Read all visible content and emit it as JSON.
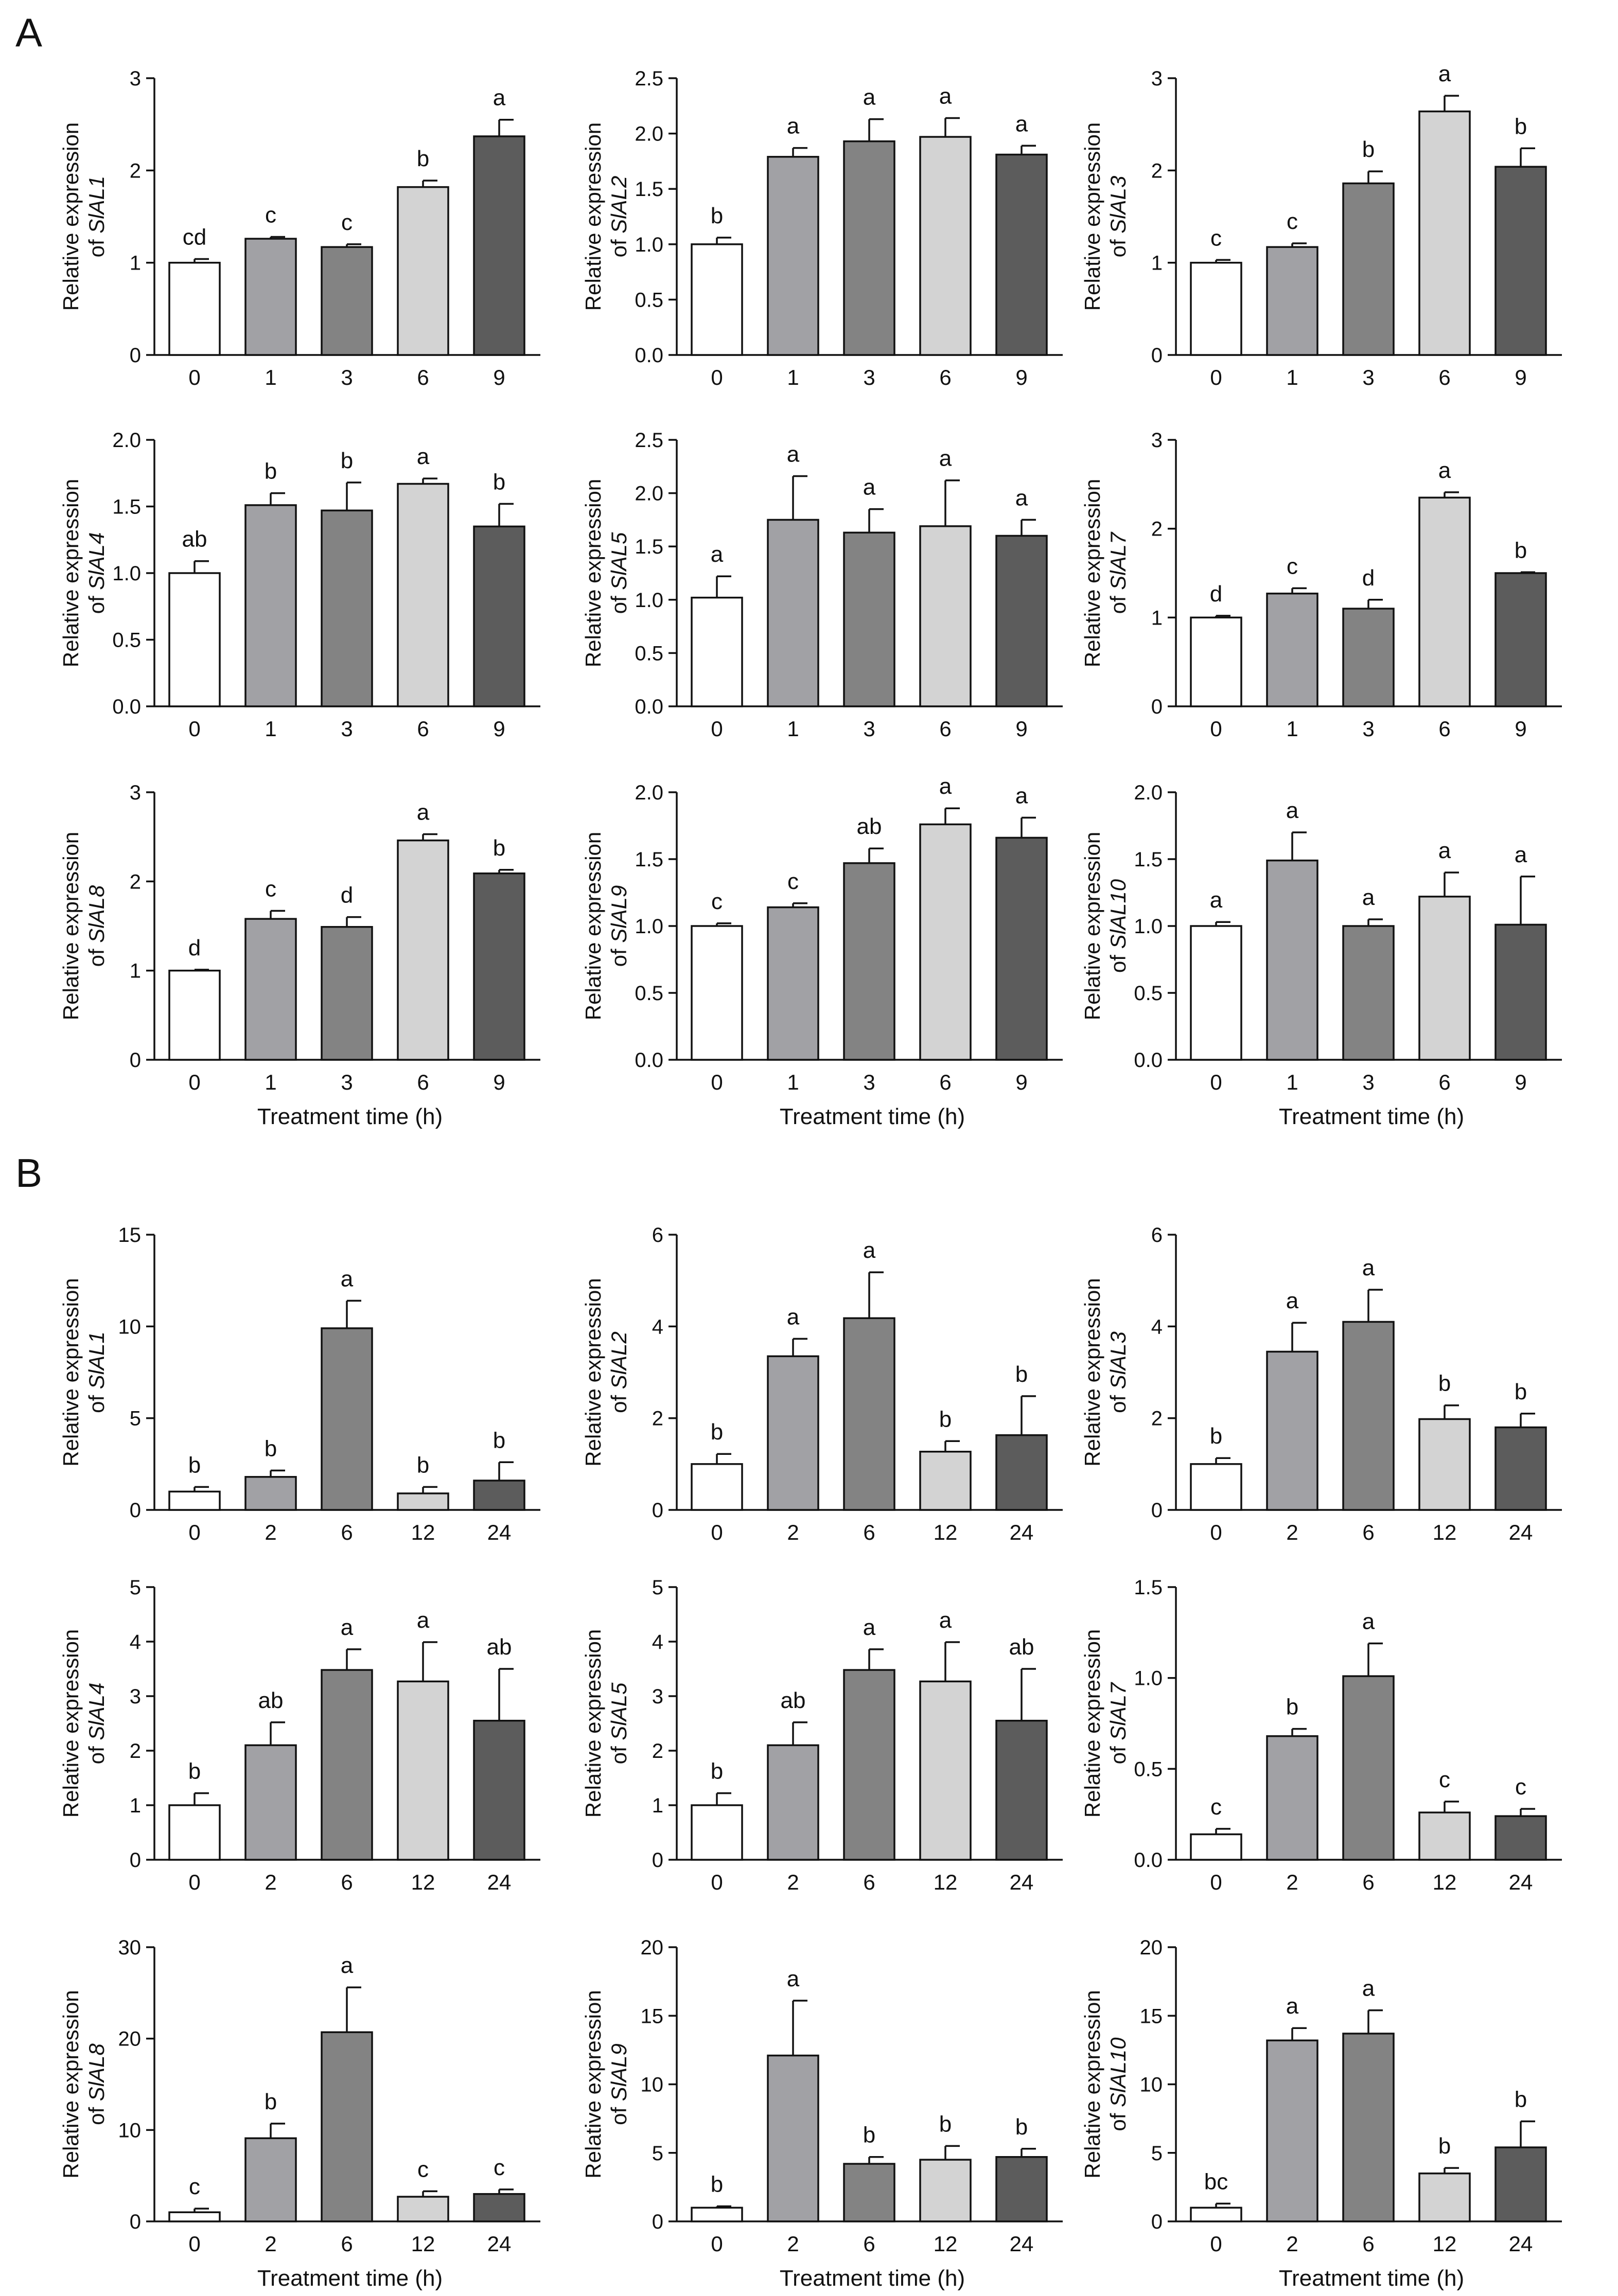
{
  "panel_labels": [
    "A",
    "B"
  ],
  "chart_data": [
    {
      "panel": "A",
      "type": "bar",
      "categories": [
        "0",
        "1",
        "3",
        "6",
        "9"
      ],
      "values": [
        1.0,
        1.26,
        1.17,
        1.82,
        2.37
      ],
      "errors": [
        0.04,
        0.02,
        0.03,
        0.07,
        0.18
      ],
      "letters": [
        "cd",
        "c",
        "c",
        "b",
        "a"
      ],
      "ylim": [
        0,
        3
      ],
      "yticks": [
        "0",
        "1",
        "2",
        "3"
      ],
      "ylabel": "Relative expression",
      "gene": "SlAL1",
      "xlabel": ""
    },
    {
      "panel": "A",
      "type": "bar",
      "categories": [
        "0",
        "1",
        "3",
        "6",
        "9"
      ],
      "values": [
        1.0,
        1.79,
        1.93,
        1.97,
        1.81
      ],
      "errors": [
        0.06,
        0.08,
        0.2,
        0.17,
        0.08
      ],
      "letters": [
        "b",
        "a",
        "a",
        "a",
        "a"
      ],
      "ylim": [
        0,
        2.5
      ],
      "yticks": [
        "0.0",
        "0.5",
        "1.0",
        "1.5",
        "2.0",
        "2.5"
      ],
      "ylabel": "Relative expression",
      "gene": "SlAL2",
      "xlabel": ""
    },
    {
      "panel": "A",
      "type": "bar",
      "categories": [
        "0",
        "1",
        "3",
        "6",
        "9"
      ],
      "values": [
        1.0,
        1.17,
        1.86,
        2.64,
        2.04
      ],
      "errors": [
        0.03,
        0.04,
        0.13,
        0.17,
        0.2
      ],
      "letters": [
        "c",
        "c",
        "b",
        "a",
        "b"
      ],
      "ylim": [
        0,
        3
      ],
      "yticks": [
        "0",
        "1",
        "2",
        "3"
      ],
      "ylabel": "Relative expression",
      "gene": "SlAL3",
      "xlabel": ""
    },
    {
      "panel": "A",
      "type": "bar",
      "categories": [
        "0",
        "1",
        "3",
        "6",
        "9"
      ],
      "values": [
        1.0,
        1.51,
        1.47,
        1.67,
        1.35
      ],
      "errors": [
        0.09,
        0.09,
        0.21,
        0.04,
        0.17
      ],
      "letters": [
        "ab",
        "b",
        "b",
        "a",
        "b"
      ],
      "ylim": [
        0,
        2
      ],
      "yticks": [
        "0.0",
        "0.5",
        "1.0",
        "1.5",
        "2.0"
      ],
      "ylabel": "Relative expression",
      "gene": "SlAL4",
      "xlabel": ""
    },
    {
      "panel": "A",
      "type": "bar",
      "categories": [
        "0",
        "1",
        "3",
        "6",
        "9"
      ],
      "values": [
        1.02,
        1.75,
        1.63,
        1.69,
        1.6
      ],
      "errors": [
        0.2,
        0.41,
        0.22,
        0.43,
        0.15
      ],
      "letters": [
        "a",
        "a",
        "a",
        "a",
        "a"
      ],
      "ylim": [
        0,
        2.5
      ],
      "yticks": [
        "0.0",
        "0.5",
        "1.0",
        "1.5",
        "2.0",
        "2.5"
      ],
      "ylabel": "Relative expression",
      "gene": "SlAL5",
      "xlabel": ""
    },
    {
      "panel": "A",
      "type": "bar",
      "categories": [
        "0",
        "1",
        "3",
        "6",
        "9"
      ],
      "values": [
        1.0,
        1.27,
        1.1,
        2.35,
        1.5
      ],
      "errors": [
        0.02,
        0.06,
        0.1,
        0.06,
        0.01
      ],
      "letters": [
        "d",
        "c",
        "d",
        "a",
        "b"
      ],
      "ylim": [
        0,
        3
      ],
      "yticks": [
        "0",
        "1",
        "2",
        "3"
      ],
      "ylabel": "Relative expression",
      "gene": "SlAL7",
      "xlabel": ""
    },
    {
      "panel": "A",
      "type": "bar",
      "categories": [
        "0",
        "1",
        "3",
        "6",
        "9"
      ],
      "values": [
        1.0,
        1.58,
        1.49,
        2.46,
        2.09
      ],
      "errors": [
        0.01,
        0.09,
        0.11,
        0.07,
        0.04
      ],
      "letters": [
        "d",
        "c",
        "d",
        "a",
        "b"
      ],
      "ylim": [
        0,
        3
      ],
      "yticks": [
        "0",
        "1",
        "2",
        "3"
      ],
      "ylabel": "Relative expression",
      "gene": "SlAL8",
      "xlabel": "Treatment time (h)"
    },
    {
      "panel": "A",
      "type": "bar",
      "categories": [
        "0",
        "1",
        "3",
        "6",
        "9"
      ],
      "values": [
        1.0,
        1.14,
        1.47,
        1.76,
        1.66
      ],
      "errors": [
        0.02,
        0.03,
        0.11,
        0.12,
        0.15
      ],
      "letters": [
        "c",
        "c",
        "ab",
        "a",
        "a"
      ],
      "ylim": [
        0,
        2
      ],
      "yticks": [
        "0.0",
        "0.5",
        "1.0",
        "1.5",
        "2.0"
      ],
      "ylabel": "Relative expression",
      "gene": "SlAL9",
      "xlabel": "Treatment time (h)"
    },
    {
      "panel": "A",
      "type": "bar",
      "categories": [
        "0",
        "1",
        "3",
        "6",
        "9"
      ],
      "values": [
        1.0,
        1.49,
        1.0,
        1.22,
        1.01
      ],
      "errors": [
        0.03,
        0.21,
        0.05,
        0.18,
        0.36
      ],
      "letters": [
        "a",
        "a",
        "a",
        "a",
        "a"
      ],
      "ylim": [
        0,
        2
      ],
      "yticks": [
        "0.0",
        "0.5",
        "1.0",
        "1.5",
        "2.0"
      ],
      "ylabel": "Relative expression",
      "gene": "SlAL10",
      "xlabel": "Treatment time (h)"
    },
    {
      "panel": "B",
      "type": "bar",
      "categories": [
        "0",
        "2",
        "6",
        "12",
        "24"
      ],
      "values": [
        1.0,
        1.8,
        9.9,
        0.9,
        1.6
      ],
      "errors": [
        0.25,
        0.35,
        1.5,
        0.35,
        1.0
      ],
      "letters": [
        "b",
        "b",
        "a",
        "b",
        "b"
      ],
      "ylim": [
        0,
        15
      ],
      "yticks": [
        "0",
        "5",
        "10",
        "15"
      ],
      "ylabel": "Relative expression",
      "gene": "SlAL1",
      "xlabel": ""
    },
    {
      "panel": "B",
      "type": "bar",
      "categories": [
        "0",
        "2",
        "6",
        "12",
        "24"
      ],
      "values": [
        1.0,
        3.35,
        4.18,
        1.27,
        1.63
      ],
      "errors": [
        0.22,
        0.38,
        1.0,
        0.23,
        0.85
      ],
      "letters": [
        "b",
        "a",
        "a",
        "b",
        "b"
      ],
      "ylim": [
        0,
        6
      ],
      "yticks": [
        "0",
        "2",
        "4",
        "6"
      ],
      "ylabel": "Relative expression",
      "gene": "SlAL2",
      "xlabel": ""
    },
    {
      "panel": "B",
      "type": "bar",
      "categories": [
        "0",
        "2",
        "6",
        "12",
        "24"
      ],
      "values": [
        1.0,
        3.45,
        4.1,
        1.98,
        1.8
      ],
      "errors": [
        0.13,
        0.63,
        0.7,
        0.3,
        0.3
      ],
      "letters": [
        "b",
        "a",
        "a",
        "b",
        "b"
      ],
      "ylim": [
        0,
        6
      ],
      "yticks": [
        "0",
        "2",
        "4",
        "6"
      ],
      "ylabel": "Relative expression",
      "gene": "SlAL3",
      "xlabel": ""
    },
    {
      "panel": "B",
      "type": "bar",
      "categories": [
        "0",
        "2",
        "6",
        "12",
        "24"
      ],
      "values": [
        1.0,
        2.1,
        3.48,
        3.27,
        2.55
      ],
      "errors": [
        0.22,
        0.42,
        0.38,
        0.72,
        0.95
      ],
      "letters": [
        "b",
        "ab",
        "a",
        "a",
        "ab"
      ],
      "ylim": [
        0,
        5
      ],
      "yticks": [
        "0",
        "1",
        "2",
        "3",
        "4",
        "5"
      ],
      "ylabel": "Relative expression",
      "gene": "SlAL4",
      "xlabel": ""
    },
    {
      "panel": "B",
      "type": "bar",
      "categories": [
        "0",
        "2",
        "6",
        "12",
        "24"
      ],
      "values": [
        1.0,
        2.1,
        3.48,
        3.27,
        2.55
      ],
      "errors": [
        0.22,
        0.42,
        0.38,
        0.72,
        0.95
      ],
      "letters": [
        "b",
        "ab",
        "a",
        "a",
        "ab"
      ],
      "ylim": [
        0,
        5
      ],
      "yticks": [
        "0",
        "1",
        "2",
        "3",
        "4",
        "5"
      ],
      "ylabel": "Relative expression",
      "gene": "SlAL5",
      "xlabel": ""
    },
    {
      "panel": "B",
      "type": "bar",
      "categories": [
        "0",
        "2",
        "6",
        "12",
        "24"
      ],
      "values": [
        0.14,
        0.68,
        1.01,
        0.26,
        0.24
      ],
      "errors": [
        0.03,
        0.04,
        0.18,
        0.06,
        0.04
      ],
      "letters": [
        "c",
        "b",
        "a",
        "c",
        "c"
      ],
      "ylim": [
        0,
        1.5
      ],
      "yticks": [
        "0.0",
        "0.5",
        "1.0",
        "1.5"
      ],
      "ylabel": "Relative expression",
      "gene": "SlAL7",
      "xlabel": ""
    },
    {
      "panel": "B",
      "type": "bar",
      "categories": [
        "0",
        "2",
        "6",
        "12",
        "24"
      ],
      "values": [
        1.0,
        9.1,
        20.7,
        2.7,
        3.0
      ],
      "errors": [
        0.4,
        1.6,
        4.9,
        0.6,
        0.5
      ],
      "letters": [
        "c",
        "b",
        "a",
        "c",
        "c"
      ],
      "ylim": [
        0,
        30
      ],
      "yticks": [
        "0",
        "10",
        "20",
        "30"
      ],
      "ylabel": "Relative expression",
      "gene": "SlAL8",
      "xlabel": "Treatment time (h)"
    },
    {
      "panel": "B",
      "type": "bar",
      "categories": [
        "0",
        "2",
        "6",
        "12",
        "24"
      ],
      "values": [
        1.0,
        12.1,
        4.2,
        4.5,
        4.7
      ],
      "errors": [
        0.1,
        4.0,
        0.5,
        1.0,
        0.6
      ],
      "letters": [
        "b",
        "a",
        "b",
        "b",
        "b"
      ],
      "ylim": [
        0,
        20
      ],
      "yticks": [
        "0",
        "5",
        "10",
        "15",
        "20"
      ],
      "ylabel": "Relative expression",
      "gene": "SlAL9",
      "xlabel": "Treatment time (h)"
    },
    {
      "panel": "B",
      "type": "bar",
      "categories": [
        "0",
        "2",
        "6",
        "12",
        "24"
      ],
      "values": [
        1.0,
        13.2,
        13.7,
        3.5,
        5.4
      ],
      "errors": [
        0.3,
        0.9,
        1.7,
        0.4,
        1.9
      ],
      "letters": [
        "bc",
        "a",
        "a",
        "b",
        "b"
      ],
      "ylim": [
        0,
        20
      ],
      "yticks": [
        "0",
        "5",
        "10",
        "15",
        "20"
      ],
      "ylabel": "Relative expression",
      "gene": "SlAL10",
      "xlabel": "Treatment time (h)"
    }
  ],
  "bar_fills": [
    "#ffffff",
    "#a1a1a5",
    "#838383",
    "#d3d3d3",
    "#5c5c5c"
  ],
  "axis_color": "#111111"
}
